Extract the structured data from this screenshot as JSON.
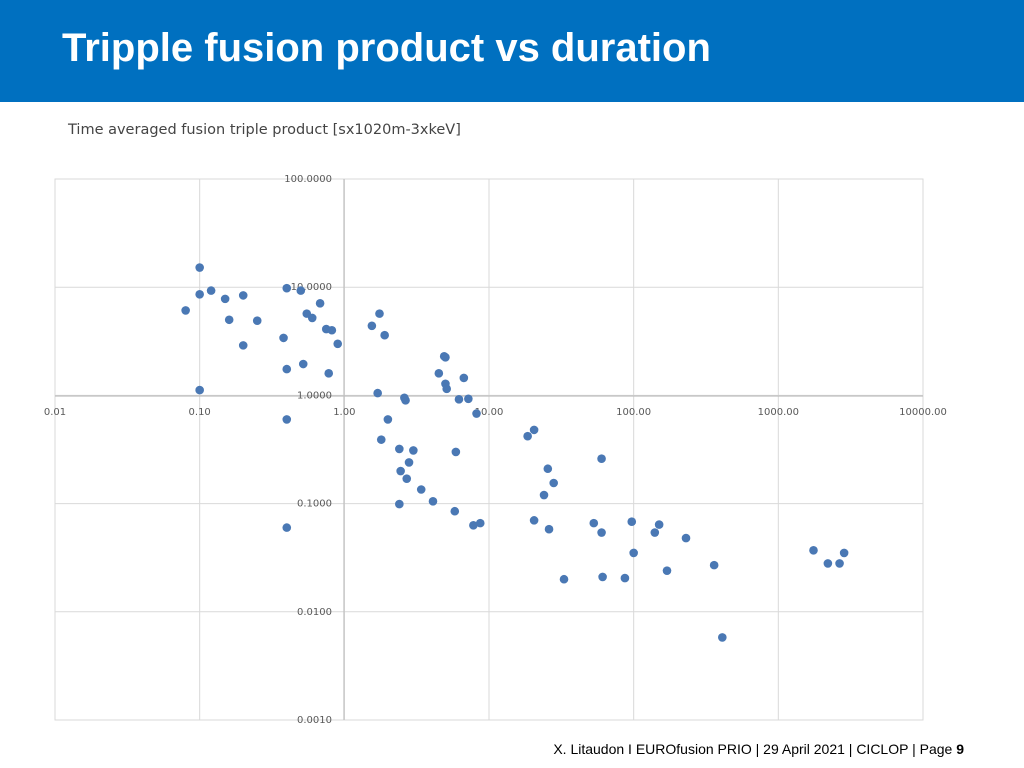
{
  "header": {
    "title": "Tripple fusion product vs duration",
    "background_color": "#0070c0",
    "text_color": "#ffffff"
  },
  "chart": {
    "subtitle": "Time averaged fusion triple product [sx1020m-3xkeV]"
  },
  "footer": {
    "text": "X. Litaudon I EUROfusion PRIO | 29 April  2021 | CICLOP | Page ",
    "page_number": "9"
  },
  "chart_data": {
    "type": "scatter",
    "title": "Time averaged fusion triple product [sx1020m-3xkeV]",
    "xscale": "log",
    "yscale": "log",
    "xlim": [
      0.01,
      10000
    ],
    "ylim": [
      0.001,
      100
    ],
    "x_tick_labels": [
      "0.01",
      "0.10",
      "1.00",
      "10.00",
      "100.00",
      "1000.00",
      "10000.00"
    ],
    "y_tick_labels": [
      "100.0000",
      "10.0000",
      "1.0000",
      "0.1000",
      "0.0100",
      "0.0010"
    ],
    "grid": true,
    "legend": "none",
    "marker_color": "#4a78b4",
    "gridline_color": "#d9d9d9",
    "axis_color": "#bfbfbf",
    "series": [
      {
        "points": [
          [
            0.1,
            15.2
          ],
          [
            0.08,
            6.1
          ],
          [
            0.1,
            8.6
          ],
          [
            0.12,
            9.3
          ],
          [
            0.15,
            7.8
          ],
          [
            0.2,
            8.4
          ],
          [
            0.16,
            5.0
          ],
          [
            0.2,
            2.9
          ],
          [
            0.25,
            4.9
          ],
          [
            0.4,
            9.8
          ],
          [
            0.5,
            9.3
          ],
          [
            0.6,
            5.2
          ],
          [
            0.55,
            5.7
          ],
          [
            0.68,
            7.1
          ],
          [
            0.38,
            3.4
          ],
          [
            0.75,
            4.1
          ],
          [
            0.82,
            4.0
          ],
          [
            0.9,
            3.0
          ],
          [
            0.52,
            1.95
          ],
          [
            0.4,
            1.75
          ],
          [
            0.78,
            1.6
          ],
          [
            0.1,
            1.12
          ],
          [
            0.4,
            0.6
          ],
          [
            0.4,
            0.06
          ],
          [
            1.55,
            4.4
          ],
          [
            1.75,
            5.7
          ],
          [
            1.9,
            3.6
          ],
          [
            2.0,
            0.6
          ],
          [
            1.7,
            1.05
          ],
          [
            1.8,
            0.39
          ],
          [
            2.4,
            0.32
          ],
          [
            2.6,
            0.95
          ],
          [
            2.65,
            0.9
          ],
          [
            3.0,
            0.31
          ],
          [
            2.8,
            0.24
          ],
          [
            2.45,
            0.2
          ],
          [
            2.7,
            0.17
          ],
          [
            3.4,
            0.135
          ],
          [
            2.4,
            0.099
          ],
          [
            4.1,
            0.105
          ],
          [
            4.5,
            1.6
          ],
          [
            4.9,
            2.3
          ],
          [
            5.0,
            2.25
          ],
          [
            5.0,
            1.28
          ],
          [
            5.1,
            1.15
          ],
          [
            5.9,
            0.3
          ],
          [
            6.2,
            0.92
          ],
          [
            6.7,
            1.45
          ],
          [
            7.2,
            0.93
          ],
          [
            8.2,
            0.68
          ],
          [
            5.8,
            0.085
          ],
          [
            7.8,
            0.063
          ],
          [
            8.7,
            0.066
          ],
          [
            18.5,
            0.42
          ],
          [
            20.5,
            0.48
          ],
          [
            20.5,
            0.07
          ],
          [
            25.5,
            0.21
          ],
          [
            24.0,
            0.12
          ],
          [
            28.0,
            0.155
          ],
          [
            26.0,
            0.058
          ],
          [
            33.0,
            0.02
          ],
          [
            53.0,
            0.066
          ],
          [
            60.0,
            0.26
          ],
          [
            60.0,
            0.054
          ],
          [
            61.0,
            0.021
          ],
          [
            87.0,
            0.0205
          ],
          [
            97.0,
            0.068
          ],
          [
            100.0,
            0.035
          ],
          [
            140.0,
            0.054
          ],
          [
            150.0,
            0.064
          ],
          [
            170.0,
            0.024
          ],
          [
            230.0,
            0.048
          ],
          [
            360.0,
            0.027
          ],
          [
            410.0,
            0.0058
          ],
          [
            1750.0,
            0.037
          ],
          [
            2200.0,
            0.028
          ],
          [
            2650.0,
            0.028
          ],
          [
            2850.0,
            0.035
          ]
        ]
      }
    ]
  }
}
